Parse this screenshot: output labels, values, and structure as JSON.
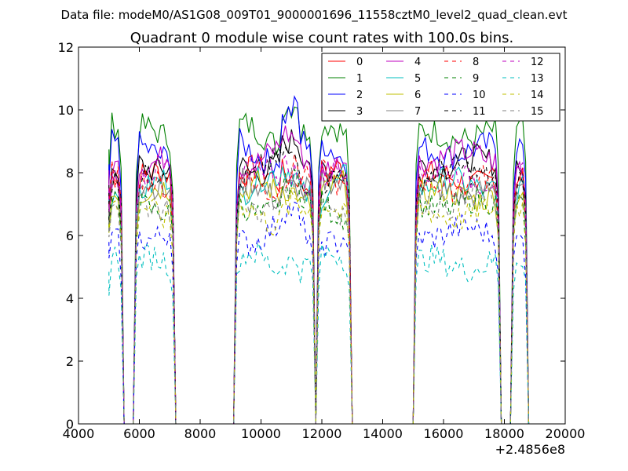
{
  "figure": {
    "suptitle": "Data file: modeM0/AS1G08_009T01_9000001696_11558cztM0_level2_quad_clean.evt"
  },
  "chart_data": {
    "type": "line",
    "title": "Quadrant 0 module wise count rates with 100.0s bins.",
    "xlabel": "",
    "ylabel": "",
    "x_offset_label": "+2.4856e8",
    "xlim": [
      4000,
      20000
    ],
    "ylim": [
      0,
      12
    ],
    "xticks": [
      4000,
      6000,
      8000,
      10000,
      12000,
      14000,
      16000,
      18000,
      20000
    ],
    "yticks": [
      0,
      2,
      4,
      6,
      8,
      10,
      12
    ],
    "xtick_labels": [
      "4000",
      "6000",
      "8000",
      "10000",
      "12000",
      "14000",
      "16000",
      "18000",
      "20000"
    ],
    "ytick_labels": [
      "0",
      "2",
      "4",
      "6",
      "8",
      "10",
      "12"
    ],
    "grid": false,
    "legend_position": "top-right",
    "legend_columns": 4,
    "good_time_intervals": [
      [
        5000,
        5400
      ],
      [
        5900,
        7100
      ],
      [
        9200,
        11700
      ],
      [
        11900,
        12900
      ],
      [
        15100,
        17800
      ],
      [
        18300,
        18700
      ]
    ],
    "series": [
      {
        "name": "0",
        "color": "#ff0000",
        "dash": "solid",
        "level": 7.8
      },
      {
        "name": "1",
        "color": "#008000",
        "dash": "solid",
        "level": 9.2
      },
      {
        "name": "2",
        "color": "#0000ff",
        "dash": "solid",
        "level": 8.7
      },
      {
        "name": "3",
        "color": "#000000",
        "dash": "solid",
        "level": 8.3
      },
      {
        "name": "4",
        "color": "#bf00bf",
        "dash": "solid",
        "level": 8.5
      },
      {
        "name": "5",
        "color": "#00bfbf",
        "dash": "solid",
        "level": 7.6
      },
      {
        "name": "6",
        "color": "#bfbf00",
        "dash": "solid",
        "level": 7.3
      },
      {
        "name": "7",
        "color": "#808080",
        "dash": "solid",
        "level": 7.4
      },
      {
        "name": "8",
        "color": "#ff0000",
        "dash": "dashed",
        "level": 7.7
      },
      {
        "name": "9",
        "color": "#008000",
        "dash": "dashed",
        "level": 7.0
      },
      {
        "name": "10",
        "color": "#0000ff",
        "dash": "dashed",
        "level": 6.1
      },
      {
        "name": "11",
        "color": "#000000",
        "dash": "dashed",
        "level": 8.0
      },
      {
        "name": "12",
        "color": "#bf00bf",
        "dash": "dashed",
        "level": 7.9
      },
      {
        "name": "13",
        "color": "#00bfbf",
        "dash": "dashed",
        "level": 5.1
      },
      {
        "name": "14",
        "color": "#bfbf00",
        "dash": "dashed",
        "level": 6.7
      },
      {
        "name": "15",
        "color": "#808080",
        "dash": "dashed",
        "level": 7.1
      }
    ]
  }
}
